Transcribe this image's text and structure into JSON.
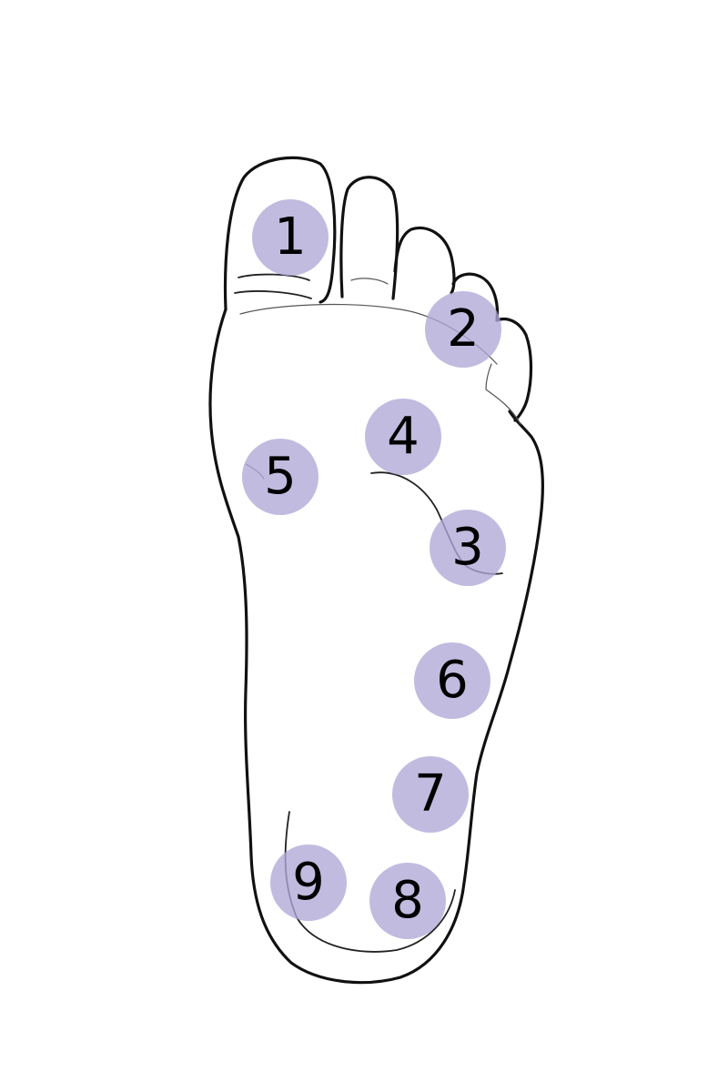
{
  "points": [
    {
      "label": "1"
    },
    {
      "label": "2"
    },
    {
      "label": "3"
    },
    {
      "label": "4"
    },
    {
      "label": "5"
    },
    {
      "label": "6"
    },
    {
      "label": "7"
    },
    {
      "label": "8"
    },
    {
      "label": "9"
    }
  ],
  "colors": {
    "marker_fill": "#b0a8d6",
    "outline": "#111111",
    "background": "#ffffff"
  }
}
